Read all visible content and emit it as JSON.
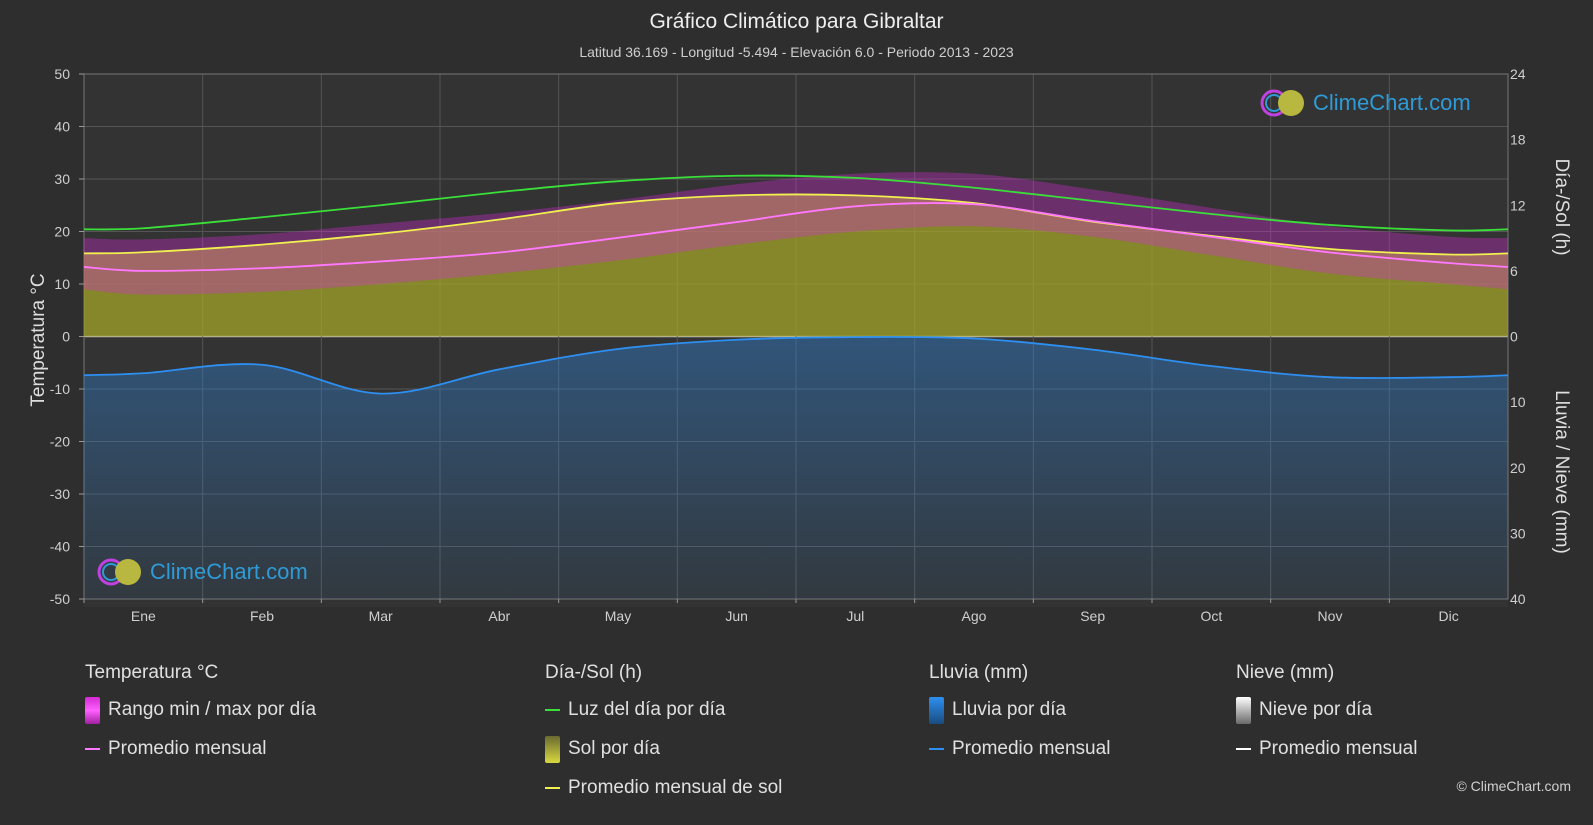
{
  "title": "Gráfico Climático para Gibraltar",
  "subtitle": "Latitud 36.169 - Longitud -5.494 - Elevación 6.0 - Periodo 2013 - 2023",
  "logo_text": "ClimeChart.com",
  "copyright": "© ClimeChart.com",
  "axes": {
    "left_title": "Temperatura °C",
    "right_top_title": "Día-/Sol (h)",
    "right_bottom_title": "Lluvia / Nieve (mm)",
    "left_ticks": [
      "50",
      "40",
      "30",
      "20",
      "10",
      "0",
      "-10",
      "-20",
      "-30",
      "-40",
      "-50"
    ],
    "right_top_ticks": [
      "24",
      "18",
      "12",
      "6",
      "0"
    ],
    "right_bottom_ticks": [
      "10",
      "20",
      "30",
      "40"
    ]
  },
  "legend": {
    "temp": {
      "head": "Temperatura °C",
      "range": "Rango min / max por día",
      "avg": "Promedio mensual"
    },
    "sun": {
      "head": "Día-/Sol (h)",
      "daylight": "Luz del día por día",
      "sun": "Sol por día",
      "avg": "Promedio mensual de sol"
    },
    "rain": {
      "head": "Lluvia (mm)",
      "per_day": "Lluvia por día",
      "avg": "Promedio mensual"
    },
    "snow": {
      "head": "Nieve (mm)",
      "per_day": "Nieve por día",
      "avg": "Promedio mensual"
    }
  },
  "colors": {
    "background": "#2e2e2e",
    "temp_range": "#d42ad4",
    "temp_avg": "#ff78ff",
    "daylight": "#3adf3a",
    "sun_fill": "#a3a32a",
    "sun_avg": "#f0f050",
    "rain": "#2e7fd0",
    "rain_avg": "#2e8ff0",
    "snow_avg": "#ffffff",
    "logo_text": "#2e9bd6"
  },
  "chart_data": {
    "type": "line",
    "categories": [
      "Ene",
      "Feb",
      "Mar",
      "Abr",
      "May",
      "Jun",
      "Jul",
      "Ago",
      "Sep",
      "Oct",
      "Nov",
      "Dic"
    ],
    "temp_ylim": [
      -50,
      50
    ],
    "sun_ylim": [
      0,
      24
    ],
    "rain_ylim": [
      0,
      40
    ],
    "series": [
      {
        "name": "Luz del día por día",
        "axis": "sun_h",
        "values": [
          9.9,
          10.9,
          12.0,
          13.2,
          14.2,
          14.7,
          14.5,
          13.6,
          12.4,
          11.2,
          10.2,
          9.7
        ]
      },
      {
        "name": "Promedio mensual de sol",
        "axis": "sun_h",
        "values": [
          7.7,
          8.4,
          9.4,
          10.7,
          12.2,
          12.9,
          12.9,
          12.2,
          10.5,
          9.2,
          8.0,
          7.5
        ]
      },
      {
        "name": "Promedio mensual",
        "axis": "temp_c",
        "values": [
          12.5,
          13.0,
          14.3,
          16.0,
          18.8,
          21.8,
          24.8,
          25.2,
          22.0,
          19.0,
          16.0,
          14.0
        ]
      },
      {
        "name": "Promedio mensual",
        "axis": "rain_mm",
        "values": [
          5.6,
          4.3,
          8.7,
          5.0,
          1.9,
          0.5,
          0.1,
          0.3,
          2.0,
          4.5,
          6.2,
          6.2
        ]
      }
    ],
    "temp_range_max": [
      18.5,
      19.5,
      21.5,
      23.5,
      26.0,
      29.0,
      31.0,
      31.0,
      28.0,
      24.5,
      21.0,
      19.0
    ],
    "temp_range_min": [
      8.0,
      8.5,
      10.0,
      12.0,
      14.5,
      17.5,
      20.0,
      21.0,
      19.0,
      15.5,
      12.0,
      10.0
    ]
  }
}
